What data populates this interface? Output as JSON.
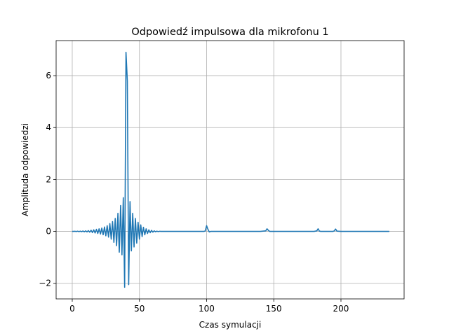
{
  "chart_data": {
    "type": "line",
    "title": "Odpowiedź impulsowa dla mikrofonu 1",
    "xlabel": "Czas symulacji",
    "ylabel": "Amplituda odpowiedzi",
    "xlim": [
      -12,
      247
    ],
    "ylim": [
      -2.6,
      7.35
    ],
    "x_ticks": [
      0,
      50,
      100,
      150,
      200
    ],
    "y_ticks": [
      -2,
      0,
      2,
      4,
      6
    ],
    "x_tick_labels": [
      "0",
      "50",
      "100",
      "150",
      "200"
    ],
    "y_tick_labels": [
      "−2",
      "0",
      "2",
      "4",
      "6"
    ],
    "grid": true,
    "series": [
      {
        "color": "#1f77b4",
        "x": [
          0,
          1,
          2,
          3,
          4,
          5,
          6,
          7,
          8,
          9,
          10,
          11,
          12,
          13,
          14,
          15,
          16,
          17,
          18,
          19,
          20,
          21,
          22,
          23,
          24,
          25,
          26,
          27,
          28,
          29,
          30,
          31,
          32,
          33,
          34,
          35,
          36,
          37,
          38,
          39,
          40,
          41,
          42,
          43,
          44,
          45,
          46,
          47,
          48,
          49,
          50,
          51,
          52,
          53,
          54,
          55,
          56,
          57,
          58,
          59,
          60,
          61,
          62,
          63,
          64,
          65,
          66,
          67,
          68,
          69,
          70,
          80,
          90,
          98,
          99,
          100,
          101,
          102,
          103,
          104,
          105,
          110,
          120,
          130,
          140,
          144,
          145,
          146,
          147,
          148,
          150,
          160,
          170,
          180,
          182,
          183,
          184,
          185,
          190,
          194,
          195,
          196,
          197,
          200,
          210,
          220,
          230,
          236
        ],
        "y": [
          0,
          0,
          0.005,
          -0.005,
          0.008,
          -0.008,
          0.01,
          -0.01,
          0.015,
          -0.015,
          0.02,
          -0.02,
          0.03,
          -0.03,
          0.045,
          -0.045,
          0.06,
          -0.06,
          0.08,
          -0.08,
          0.1,
          -0.1,
          0.13,
          -0.13,
          0.17,
          -0.17,
          0.22,
          -0.22,
          0.3,
          -0.3,
          0.38,
          -0.42,
          0.5,
          -0.55,
          0.7,
          -0.8,
          1.0,
          -0.9,
          1.3,
          -2.15,
          6.9,
          5.8,
          -2.05,
          1.15,
          -0.75,
          0.7,
          -0.6,
          0.5,
          -0.45,
          0.35,
          -0.3,
          0.25,
          -0.2,
          0.16,
          -0.13,
          0.1,
          -0.08,
          0.06,
          -0.05,
          0.04,
          -0.03,
          0.02,
          -0.015,
          0.01,
          -0.008,
          0.005,
          0,
          0,
          0,
          0,
          0,
          0,
          0,
          0,
          0.02,
          0.22,
          0.08,
          -0.02,
          0,
          0,
          0,
          0,
          0,
          0,
          0,
          0.02,
          0.1,
          0.04,
          0,
          0,
          0,
          0,
          0,
          0,
          0.02,
          0.1,
          0.01,
          0,
          0,
          0,
          0.02,
          0.09,
          0.01,
          0,
          0,
          0,
          0,
          0
        ]
      }
    ]
  }
}
